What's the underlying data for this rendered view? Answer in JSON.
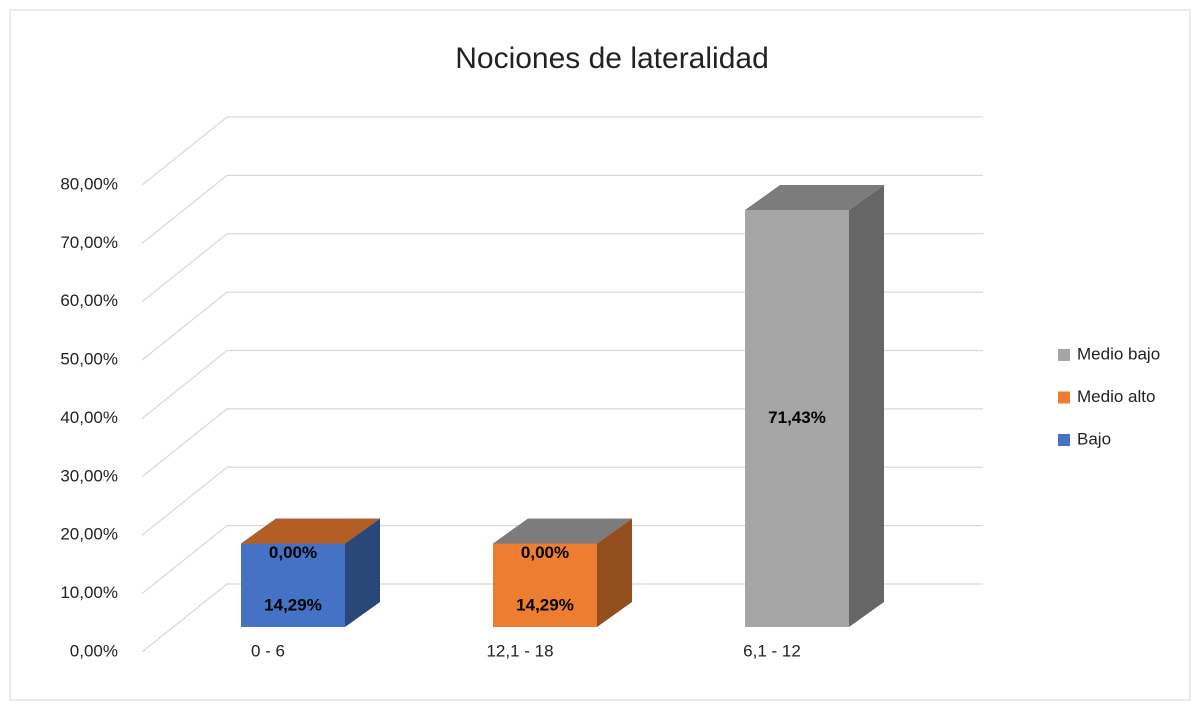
{
  "chart_data": {
    "type": "bar3d_stacked",
    "title": "Nociones de lateralidad",
    "categories": [
      "0          -       6",
      "12,1       -       18",
      "6,1     -      12"
    ],
    "series": [
      {
        "name": "Bajo",
        "color": "#4472c4",
        "values": [
          14.29,
          null,
          null
        ],
        "value_labels": [
          "14,29%",
          null,
          null
        ]
      },
      {
        "name": "Medio alto",
        "color": "#ed7d31",
        "values": [
          0,
          14.29,
          null
        ],
        "value_labels": [
          "0,00%",
          "14,29%",
          null
        ]
      },
      {
        "name": "Medio bajo",
        "color": "#a5a5a5",
        "values": [
          null,
          0,
          71.43
        ],
        "value_labels": [
          null,
          "0,00%",
          "71,43%"
        ]
      }
    ],
    "ylim": [
      0,
      80
    ],
    "yticks": [
      {
        "value": 0,
        "label": "0,00%"
      },
      {
        "value": 10,
        "label": "10,00%"
      },
      {
        "value": 20,
        "label": "20,00%"
      },
      {
        "value": 30,
        "label": "30,00%"
      },
      {
        "value": 40,
        "label": "40,00%"
      },
      {
        "value": 50,
        "label": "50,00%"
      },
      {
        "value": 60,
        "label": "60,00%"
      },
      {
        "value": 70,
        "label": "70,00%"
      },
      {
        "value": 80,
        "label": "80,00%"
      }
    ],
    "grid": true,
    "legend": "right"
  }
}
